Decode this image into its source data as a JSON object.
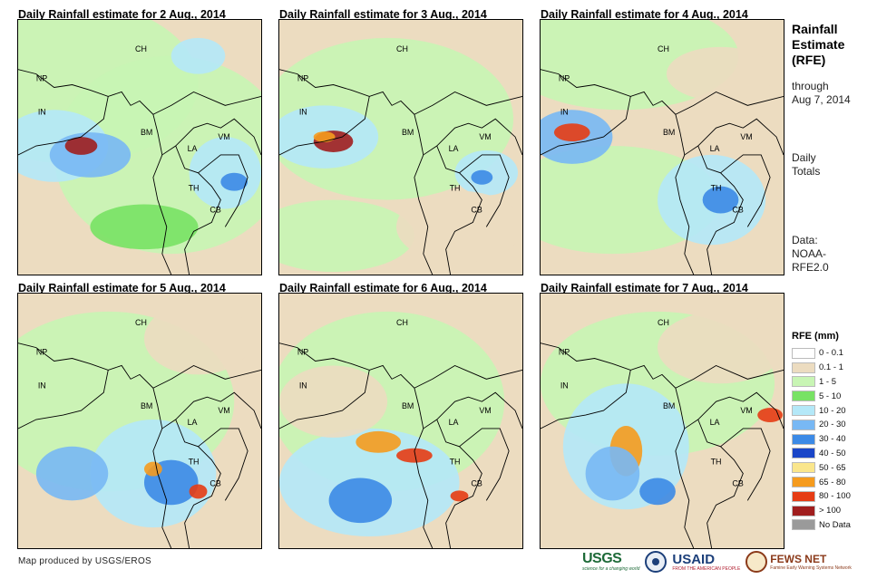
{
  "panels": [
    {
      "title": "Daily Rainfall estimate for 2 Aug., 2014",
      "variant": 0,
      "labels": {
        "ch": "CH",
        "np": "NP",
        "in": "IN",
        "bm": "BM",
        "la": "LA",
        "vm": "VM",
        "th": "TH",
        "cb": "CB"
      }
    },
    {
      "title": "Daily Rainfall estimate for 3 Aug., 2014",
      "variant": 1,
      "labels": {
        "ch": "CH",
        "np": "NP",
        "in": "IN",
        "bm": "BM",
        "la": "LA",
        "vm": "VM",
        "th": "TH",
        "cb": "CB"
      }
    },
    {
      "title": "Daily Rainfall estimate for 4 Aug., 2014",
      "variant": 2,
      "labels": {
        "ch": "CH",
        "np": "NP",
        "in": "IN",
        "bm": "BM",
        "la": "LA",
        "vm": "VM",
        "th": "TH",
        "cb": "CB"
      }
    },
    {
      "title": "Daily Rainfall estimate for 5 Aug., 2014",
      "variant": 3,
      "labels": {
        "ch": "CH",
        "np": "NP",
        "in": "IN",
        "bm": "BM",
        "la": "LA",
        "vm": "VM",
        "th": "TH",
        "cb": "CB"
      }
    },
    {
      "title": "Daily Rainfall estimate for 6 Aug., 2014",
      "variant": 4,
      "labels": {
        "ch": "CH",
        "np": "NP",
        "in": "IN",
        "bm": "BM",
        "la": "LA",
        "vm": "VM",
        "th": "TH",
        "cb": "CB"
      }
    },
    {
      "title": "Daily Rainfall estimate for 7 Aug., 2014",
      "variant": 5,
      "labels": {
        "ch": "CH",
        "np": "NP",
        "in": "IN",
        "bm": "BM",
        "la": "LA",
        "vm": "VM",
        "th": "TH",
        "cb": "CB"
      }
    }
  ],
  "sidebar": {
    "title_line1": "Rainfall",
    "title_line2": "Estimate",
    "title_line3": "(RFE)",
    "through_line1": "through",
    "through_line2": "Aug 7, 2014",
    "daily_line1": "Daily",
    "daily_line2": "Totals",
    "data_line1": "Data:",
    "data_line2": "NOAA-",
    "data_line3": "RFE2.0"
  },
  "legend": {
    "title": "RFE (mm)",
    "items": [
      {
        "label": "0 - 0.1",
        "color": "#ffffff"
      },
      {
        "label": "0.1 - 1",
        "color": "#ecdcc0"
      },
      {
        "label": "1 - 5",
        "color": "#c8f5b4"
      },
      {
        "label": "5 - 10",
        "color": "#78e264"
      },
      {
        "label": "10 - 20",
        "color": "#b4e8f8"
      },
      {
        "label": "20 - 30",
        "color": "#78b8f4"
      },
      {
        "label": "30 - 40",
        "color": "#3c8ae6"
      },
      {
        "label": "40 - 50",
        "color": "#1a46c8"
      },
      {
        "label": "50 - 65",
        "color": "#fae68c"
      },
      {
        "label": "65 - 80",
        "color": "#f59b1e"
      },
      {
        "label": "80 - 100",
        "color": "#e63c14"
      },
      {
        "label": "> 100",
        "color": "#a01e1e"
      },
      {
        "label": "No Data",
        "color": "#9a9a9a"
      }
    ]
  },
  "credit": "Map produced by USGS/EROS",
  "logos": {
    "usgs": "USGS",
    "usgs_tagline": "science for a changing world",
    "usaid": "USAID",
    "usaid_tagline": "FROM THE AMERICAN PEOPLE",
    "fews": "FEWS NET",
    "fews_tagline": "Famine Early Warning Systems Network"
  }
}
